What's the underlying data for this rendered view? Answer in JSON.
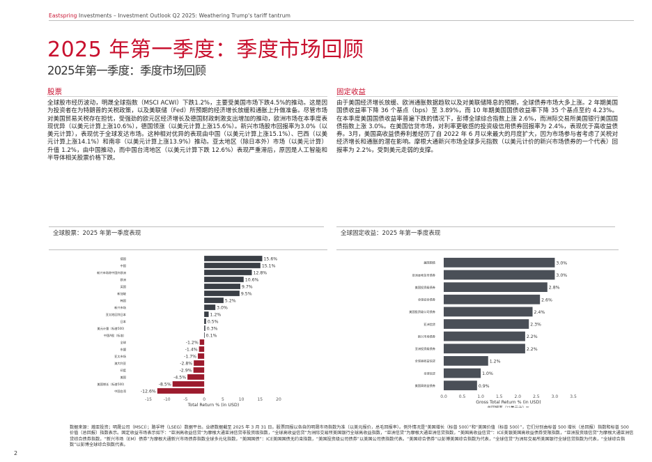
{
  "header": {
    "brand": "Eastspring",
    "rest": " Investments – Investment Outlook Q2 2025: Weathering Trump's tariff tantrum"
  },
  "title": "2025 年第一季度：季度市场回顾",
  "subtitle": "2025年第一季度：季度市场回顾",
  "equities": {
    "heading": "股票",
    "text": "全球股市经历波动，明晟全球指数（MSCI ACWI）下跌1.2%，主要受美国市场下跌4.5%的推动。这是因为投资者在为特朗普的关税政策，以及美联储（Fed）所预期的经济增长放缓和通胀上升做准备。尽管市场对美国贸易关税存在担忧，受强劲的欧元区经济增长及德国财政刺激支出增加的推动，欧洲市场在本季度表现优异（以美元计算上涨10.6%），德国领涨（以美元计算上涨15.6%）。新兴市场股市回报率为3.0%（以美元计算），表现优于全球发达市场。这种相对优异的表现由中国（以美元计算上涨15.1%）、巴西（以美元计算上涨14.1%）和南非（以美元计算上涨13.9%）推动。亚太地区（除日本外）市场（以美元计算）升值 1.2%，由中国推动，而中国台湾地区（以美元计算下跌 12.6%）表现严重滞后，原因是人工智能和半导体相关股票价格下跌。"
  },
  "fixed_income": {
    "heading": "固定收益",
    "text": "由于美国经济增长放缓、欧洲通胀数据趋软以及对美联储降息的预期，全球债券市场大多上涨。2 年期美国国债收益率下降 36 个基点（bps）至 3.89%，而 10 年期美国国债收益率下降 35 个基点至约 4.23%。在本季度美国国债收益率普遍下跌的情况下，彭博全球综合指数上涨 2.6%，而洲际交易所美国银行美国国债指数上涨 3.0%。在美国信贷市场，对利率更敏感的投资级信用债券回报率为 2.4%，表现优于高收益债券。3月，美国高收益债券利差经历了自 2022 年 6 月以来最大的月度扩大，因为市场参与者考虑了关税对经济增长和通胀的潜在影响。摩根大通新兴市场全球多元指数（以美元计价的新兴市场债券的一个代表）回报率为 2.2%，受到美元走弱的支撑。"
  },
  "chart_data": [
    {
      "type": "bar",
      "orientation": "horizontal",
      "title": "全球股票：2025 年第一季度表现",
      "categories": [
        "德国",
        "中国",
        "新兴市场除中国外欧洲",
        "欧洲",
        "英国",
        "新加坡",
        "韩国",
        "新兴市场",
        "亚太地区除日本",
        "日本",
        "美元计量（标普500）",
        "中国A股（标准）",
        "全球",
        "东盟",
        "亚太市场",
        "澳大利亚",
        "印度",
        "美国",
        "美国增长（标普500）",
        "中国台湾"
      ],
      "values": [
        15.6,
        15.1,
        12.8,
        10.6,
        9.7,
        9.5,
        5.2,
        3.0,
        1.2,
        0.5,
        0.3,
        0.1,
        -1.2,
        -1.4,
        -1.7,
        -2.8,
        -2.9,
        -4.5,
        -8.5,
        -12.6
      ],
      "value_labels": [
        "15.6%",
        "15.1%",
        "12.8%",
        "10.6%",
        "9.7%",
        "9.5%",
        "5.2%",
        "3.0%",
        "1.2%",
        "0.5%",
        "0.3%",
        "0.1%",
        "-1.2%",
        "-1.4%",
        "-1.7%",
        "-2.8%",
        "-2.9%",
        "-4.5%",
        "-8.5%",
        "-12.6%"
      ],
      "xlabel": "Total Return % (in USD)",
      "xlabel2": "总回报率（以美元计）%",
      "xlim": [
        -15,
        20
      ],
      "xticks": [
        -15,
        -10,
        -5,
        0,
        5,
        10,
        15,
        20
      ],
      "tick_labels": [
        "-15",
        "-10",
        "-5",
        "0",
        "5",
        "10",
        "15",
        "20"
      ],
      "positive_color": "#3a3f46",
      "negative_color": "#9c1b2d",
      "grid": false
    },
    {
      "type": "bar",
      "orientation": "horizontal",
      "title": "全球固定收益：2025 年第一季度表现",
      "categories": [
        "美国国债",
        "亚洲本地货币债券",
        "美国投资级债券",
        "全球综合债券",
        "美国投资级公司债券",
        "亚洲信贷",
        "新兴市场债券",
        "亚洲投资级债券",
        "全球高收益信贷",
        "全球信贷",
        "美国高收益债券"
      ],
      "values": [
        3.0,
        3.0,
        2.8,
        2.6,
        2.4,
        2.3,
        2.2,
        2.2,
        1.2,
        1.0,
        0.9
      ],
      "value_labels": [
        "3.0%",
        "3.0%",
        "2.8%",
        "2.6%",
        "2.4%",
        "2.3%",
        "2.2%",
        "2.2%",
        "1.2%",
        "1.0%",
        "0.9%"
      ],
      "xlabel": "Gross Total Return % (in USD)",
      "xlabel2": "总回报率（以美元计）%",
      "xlim": [
        0,
        3.5
      ],
      "xticks": [
        0,
        0.5,
        1,
        1.5,
        2,
        2.5,
        3,
        3.5
      ],
      "tick_labels": [
        "0.0",
        "0.5",
        "1.0",
        "1.5",
        "2.0",
        "2.5",
        "3.0",
        "3.5"
      ],
      "bar_color": "#4a4f57",
      "grid": false
    }
  ],
  "footnote": "数据来源：瀚亚投资；明晟公司（MSCI）；路孚特（LSEG）数据平台。业绩数据截至 2025 年 3 月 31 日。股票回报以各自的明晟市场指数为准（以美元报价，总毛回报率）。例外情况是“美国增长（标普 500）”和“美国价值（标普 500）”，它们分别由标普 500 增长（总回报）指数和标普 500 价值（总回报）指数表示。固定收益市场表示如下：“亚洲高收益信贷”为摩根大通亚洲信贷非投资级指数，“全球高收益信贷”为洲际交易所美国银行全球高收益指数，“亚洲信贷”为摩根大通亚洲信贷指数，“美国高收益信贷”：ICE美银美国高收益债券受限指数，“亚洲投资级信贷”为摩根大通亚洲信贷综合债券指数，“新兴市场（EM）债券”为摩根大通新兴市场债券指数全球多元化指数，“美国国债”：ICE美国国债无约束指数，“美国投资级公司债券”以美国公司债指数代表。“美国综合债券”以彭博美国综合指数为代表，“全球信贷”为洲际交易所美国银行全球信贷指数为代表，“全球综合指数”以彭博全球综合指数代表。",
  "page_number": "2"
}
